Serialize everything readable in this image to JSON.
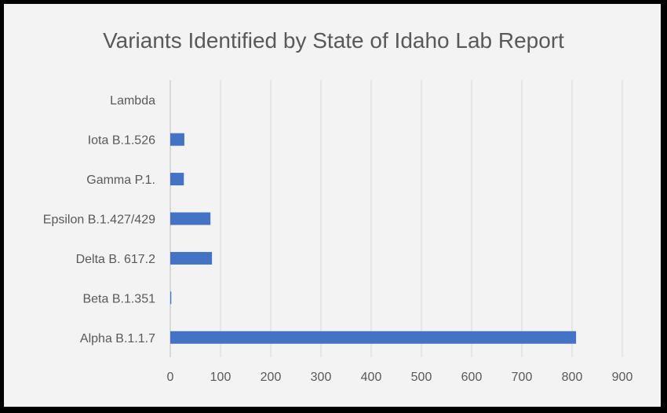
{
  "chart_data": {
    "type": "bar",
    "orientation": "horizontal",
    "title": "Variants Identified by State of Idaho Lab Report",
    "categories": [
      "Alpha B.1.1.7",
      "Beta B.1.351",
      "Delta B. 617.2",
      "Epsilon B.1.427/429",
      "Gamma P.1.",
      "Iota B.1.526",
      "Lambda"
    ],
    "values": [
      808,
      2,
      83,
      80,
      27,
      28,
      0
    ],
    "xlim": [
      0,
      900
    ],
    "xticks": [
      0,
      100,
      200,
      300,
      400,
      500,
      600,
      700,
      800,
      900
    ],
    "xlabel": "",
    "ylabel": "",
    "grid": "vertical",
    "legend": "none"
  },
  "colors": {
    "bar": "#4472c4",
    "grid": "#d9d9d9",
    "text": "#595959",
    "background": "#f3f3f3",
    "border": "#000000"
  }
}
